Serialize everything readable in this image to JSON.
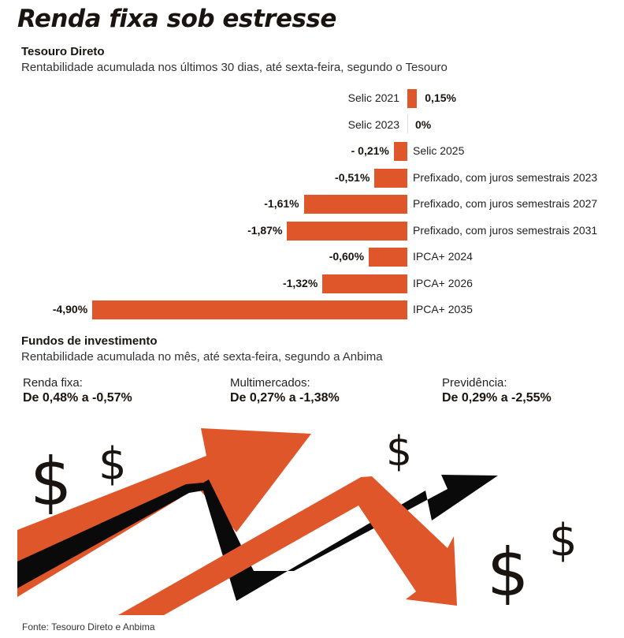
{
  "header": {
    "title": "Renda fixa sob estresse"
  },
  "tesouro": {
    "heading": "Tesouro Direto",
    "subtitle": "Rentabilidade acumulada nos últimos 30 dias, até sexta-feira, segundo o Tesouro"
  },
  "chart_data": {
    "type": "bar",
    "orientation": "horizontal",
    "title": "Tesouro Direto",
    "subtitle": "Rentabilidade acumulada nos últimos 30 dias, até sexta-feira, segundo o Tesouro",
    "xlabel": "",
    "ylabel": "",
    "unit": "%",
    "categories": [
      "Selic 2021",
      "Selic 2023",
      "Selic 2025",
      "Prefixado, com juros semestrais 2023",
      "Prefixado, com juros semestrais 2027",
      "Prefixado, com juros semestrais 2031",
      "IPCA+ 2024",
      "IPCA+ 2026",
      "IPCA+ 2035"
    ],
    "values": [
      0.15,
      0,
      -0.21,
      -0.51,
      -1.61,
      -1.87,
      -0.6,
      -1.32,
      -4.9
    ],
    "value_labels": [
      "0,15%",
      "0%",
      "- 0,21%",
      "-0,51%",
      "-1,61%",
      "-1,87%",
      "-0,60%",
      "-1,32%",
      "-4,90%"
    ],
    "xlim": [
      -4.9,
      0.15
    ],
    "grid": false,
    "bar_color": "#e0562b"
  },
  "fundos": {
    "heading": "Fundos de investimento",
    "subtitle": "Rentabilidade acumulada no mês, até sexta-feira, segundo a Anbima",
    "items": [
      {
        "label": "Renda fixa:",
        "value": "De 0,48% a -0,57%"
      },
      {
        "label": "Multimercados:",
        "value": "De 0,27% a -1,38%"
      },
      {
        "label": "Previdência:",
        "value": "De 0,29% a -2,55%"
      }
    ]
  },
  "illustration": {
    "dollar_signs": [
      "$",
      "$",
      "$",
      "$",
      "$"
    ],
    "colors": {
      "orange": "#e0562b",
      "black": "#0a0a0a"
    }
  },
  "footer": {
    "source": "Fonte: Tesouro Direto e Anbima"
  }
}
